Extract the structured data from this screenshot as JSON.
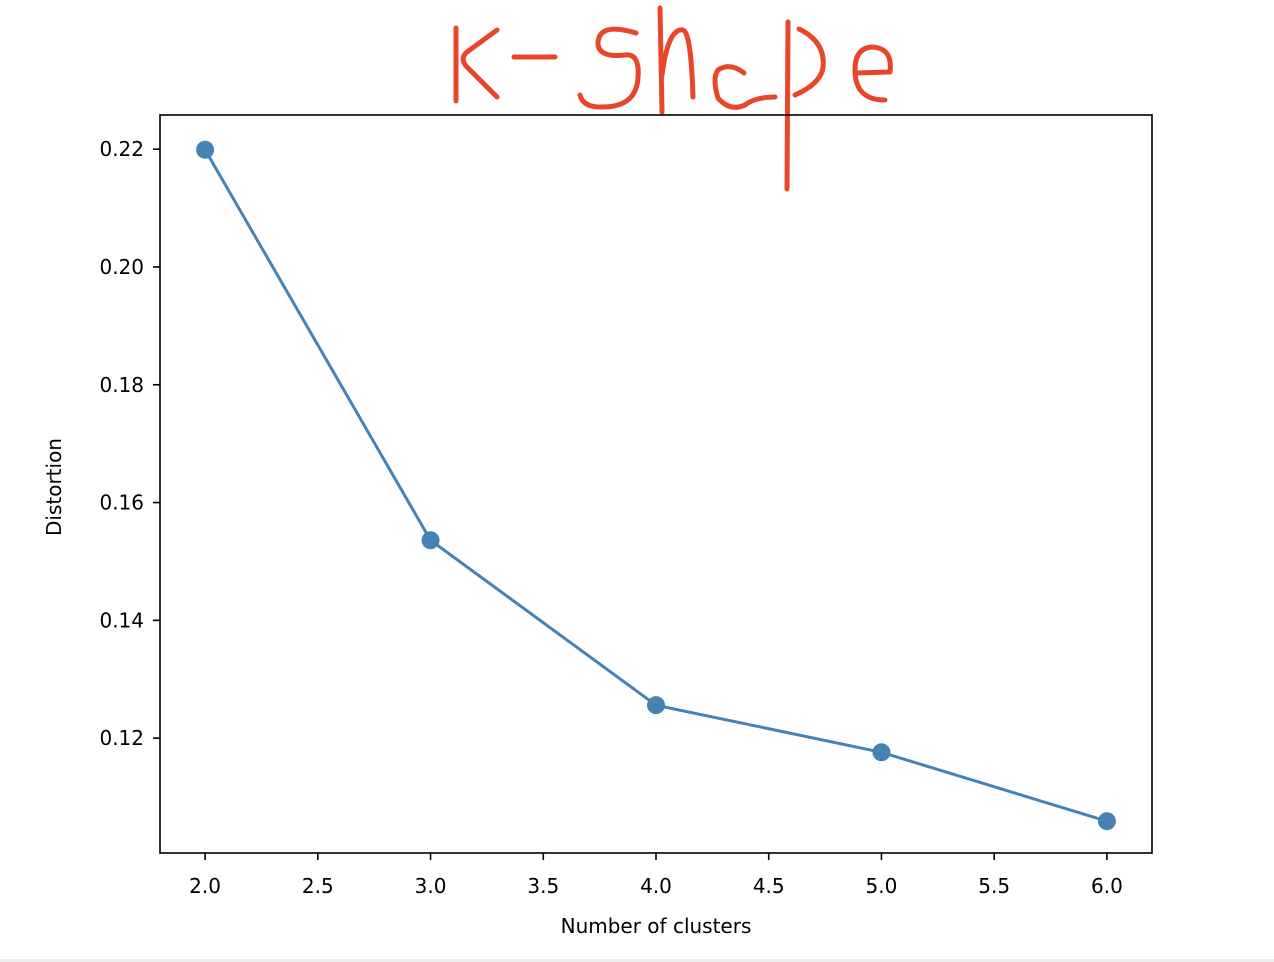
{
  "chart_data": {
    "type": "line",
    "title": "K-Shape",
    "title_style": "handwritten",
    "xlabel": "Number of clusters",
    "ylabel": "Distortion",
    "x": [
      2,
      3,
      4,
      5,
      6
    ],
    "series": [
      {
        "name": "Distortion",
        "values": [
          0.2199,
          0.1536,
          0.1256,
          0.1176,
          0.1059
        ],
        "marker": "circle"
      }
    ],
    "xlim": [
      1.8,
      6.2
    ],
    "ylim": [
      0.1005,
      0.2258
    ],
    "xticks": [
      "2.0",
      "2.5",
      "3.0",
      "3.5",
      "4.0",
      "4.5",
      "5.0",
      "5.5",
      "6.0"
    ],
    "yticks": [
      "0.12",
      "0.14",
      "0.16",
      "0.18",
      "0.20",
      "0.22"
    ],
    "grid": false,
    "legend": null
  },
  "colors": {
    "line": "#4682b4",
    "title_ink": "#e8452a",
    "axes": "#000000"
  }
}
